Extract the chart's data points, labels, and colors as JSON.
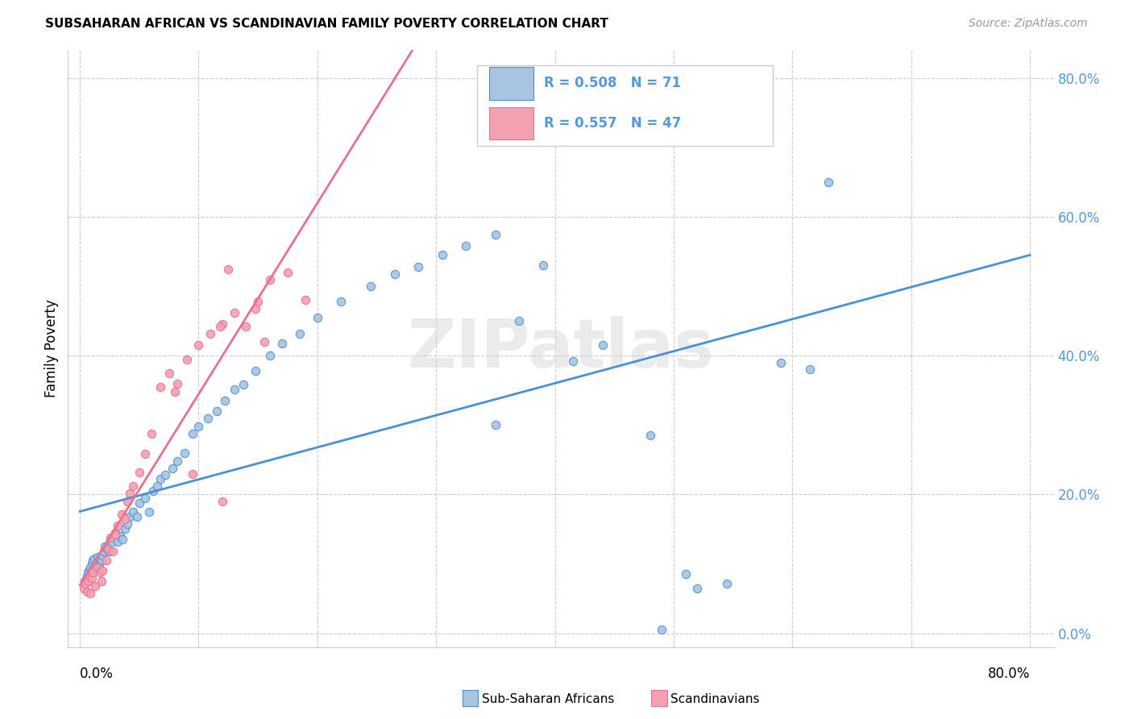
{
  "title": "SUBSAHARAN AFRICAN VS SCANDINAVIAN FAMILY POVERTY CORRELATION CHART",
  "source": "Source: ZipAtlas.com",
  "ylabel": "Family Poverty",
  "legend_blue_r": "R = 0.508",
  "legend_blue_n": "N = 71",
  "legend_pink_r": "R = 0.557",
  "legend_pink_n": "N = 47",
  "legend_label_blue": "Sub-Saharan Africans",
  "legend_label_pink": "Scandinavians",
  "watermark": "ZIPatlas",
  "blue_color": "#a8c4e0",
  "pink_color": "#f4a0b0",
  "blue_line_color": "#4a90d9",
  "pink_line_color": "#e87090",
  "axis_text_color": "#5599dd",
  "grid_color": "#cccccc",
  "blue_x": [
    0.004,
    0.006,
    0.007,
    0.008,
    0.009,
    0.01,
    0.011,
    0.012,
    0.013,
    0.014,
    0.015,
    0.016,
    0.017,
    0.018,
    0.019,
    0.02,
    0.021,
    0.023,
    0.025,
    0.027,
    0.03,
    0.032,
    0.034,
    0.036,
    0.038,
    0.04,
    0.042,
    0.045,
    0.048,
    0.05,
    0.055,
    0.058,
    0.062,
    0.065,
    0.068,
    0.072,
    0.078,
    0.082,
    0.088,
    0.095,
    0.1,
    0.108,
    0.115,
    0.122,
    0.13,
    0.138,
    0.148,
    0.16,
    0.17,
    0.185,
    0.2,
    0.22,
    0.245,
    0.265,
    0.285,
    0.305,
    0.325,
    0.35,
    0.37,
    0.39,
    0.415,
    0.44,
    0.49,
    0.51,
    0.52,
    0.545,
    0.59,
    0.615,
    0.63,
    0.48,
    0.35
  ],
  "blue_y": [
    0.075,
    0.082,
    0.088,
    0.092,
    0.095,
    0.1,
    0.105,
    0.108,
    0.092,
    0.1,
    0.11,
    0.098,
    0.108,
    0.105,
    0.112,
    0.118,
    0.125,
    0.122,
    0.118,
    0.132,
    0.145,
    0.132,
    0.14,
    0.135,
    0.15,
    0.158,
    0.168,
    0.175,
    0.168,
    0.188,
    0.195,
    0.175,
    0.205,
    0.212,
    0.222,
    0.228,
    0.238,
    0.248,
    0.26,
    0.288,
    0.298,
    0.31,
    0.32,
    0.335,
    0.352,
    0.358,
    0.378,
    0.4,
    0.418,
    0.432,
    0.455,
    0.478,
    0.5,
    0.518,
    0.528,
    0.545,
    0.558,
    0.575,
    0.45,
    0.53,
    0.392,
    0.415,
    0.005,
    0.085,
    0.065,
    0.072,
    0.39,
    0.38,
    0.65,
    0.285,
    0.3
  ],
  "pink_x": [
    0.003,
    0.005,
    0.006,
    0.007,
    0.008,
    0.009,
    0.01,
    0.011,
    0.013,
    0.015,
    0.017,
    0.018,
    0.019,
    0.022,
    0.024,
    0.026,
    0.028,
    0.03,
    0.032,
    0.035,
    0.038,
    0.04,
    0.042,
    0.045,
    0.05,
    0.055,
    0.06,
    0.068,
    0.075,
    0.082,
    0.09,
    0.1,
    0.11,
    0.12,
    0.13,
    0.14,
    0.15,
    0.16,
    0.175,
    0.19,
    0.12,
    0.08,
    0.148,
    0.118,
    0.155,
    0.125,
    0.095
  ],
  "pink_y": [
    0.065,
    0.072,
    0.06,
    0.075,
    0.082,
    0.058,
    0.08,
    0.088,
    0.068,
    0.095,
    0.088,
    0.075,
    0.09,
    0.105,
    0.122,
    0.138,
    0.118,
    0.142,
    0.155,
    0.172,
    0.165,
    0.19,
    0.202,
    0.212,
    0.232,
    0.258,
    0.288,
    0.355,
    0.375,
    0.36,
    0.395,
    0.415,
    0.432,
    0.445,
    0.462,
    0.442,
    0.478,
    0.51,
    0.52,
    0.48,
    0.19,
    0.348,
    0.468,
    0.442,
    0.42,
    0.525,
    0.23
  ],
  "xlim": [
    -0.01,
    0.82
  ],
  "ylim": [
    -0.02,
    0.84
  ],
  "ytick_vals": [
    0.0,
    0.2,
    0.4,
    0.6,
    0.8
  ],
  "xtick_vals": [
    0.0,
    0.1,
    0.2,
    0.3,
    0.4,
    0.5,
    0.6,
    0.7,
    0.8
  ]
}
